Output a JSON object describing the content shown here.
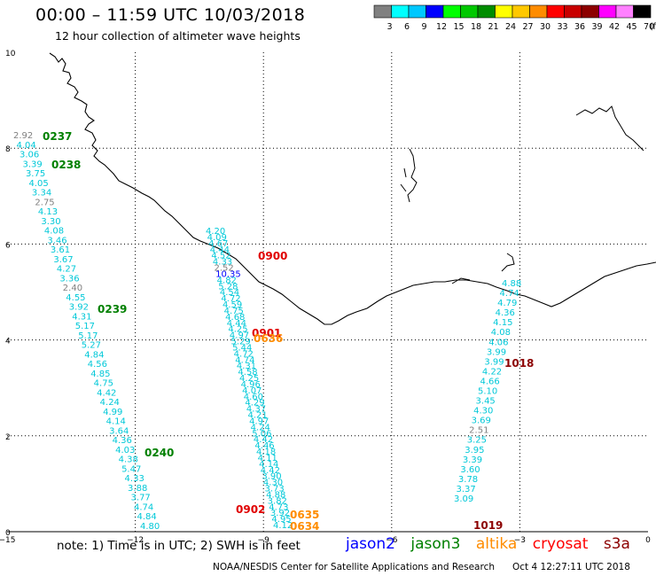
{
  "header": {
    "title": "00:00 – 11:59 UTC 10/03/2018",
    "subtitle": "12 hour collection of altimeter wave heights"
  },
  "colorbar": {
    "colors": [
      "#808080",
      "#00ffff",
      "#00c8ff",
      "#0000ff",
      "#00ff00",
      "#00c800",
      "#008c00",
      "#ffff00",
      "#ffc800",
      "#ff8c00",
      "#ff0000",
      "#c80000",
      "#8c0000",
      "#ff00ff",
      "#ff80ff",
      "#000000"
    ],
    "labels": [
      "3",
      "6",
      "9",
      "12",
      "15",
      "18",
      "21",
      "24",
      "27",
      "30",
      "33",
      "36",
      "39",
      "42",
      "45",
      "70",
      "(ft)"
    ]
  },
  "map": {
    "x_range": [
      -15,
      0
    ],
    "y_range": [
      0,
      10
    ],
    "x_ticks": [
      "−15",
      "−12",
      "−9",
      "−6",
      "−3",
      "0"
    ],
    "y_ticks": [
      "0",
      "2",
      "4",
      "6",
      "8",
      "10"
    ],
    "coastline_color": "#000000",
    "grid": "dotted"
  },
  "tracks": [
    {
      "id": "0237",
      "satellite": "jason3",
      "values": [
        "2.92",
        "4.04",
        "3.06",
        "3.39",
        "3.75",
        "4.05",
        "3.34",
        "2.75",
        "4.13",
        "3.30",
        "4.08",
        "3.46",
        "3.61",
        "3.67",
        "4.27",
        "3.36",
        "2.40",
        "4.55",
        "3.92",
        "4.31",
        "5.17",
        "5.17",
        "5.27",
        "4.84",
        "4.56",
        "4.85",
        "4.75",
        "4.42",
        "4.24",
        "4.99",
        "4.14",
        "3.64",
        "4.36",
        "4.03",
        "4.38",
        "5.47",
        "4.33",
        "3.88",
        "3.77",
        "4.74",
        "4.84",
        "4.80"
      ]
    },
    {
      "id": "0900",
      "satellite": "cryosat",
      "values": [
        "4.20",
        "4.09",
        "4.67",
        "4.44",
        "4.52",
        "4.33",
        "2.52",
        "10.35",
        "4.82",
        "5.28",
        "4.54",
        "4.72",
        "4.59",
        "4.75",
        "4.68",
        "4.44",
        "4.25",
        "4.97",
        "5.29",
        "5.44",
        "4.72",
        "4.74",
        "4.31",
        "4.58",
        "4.25",
        "4.96",
        "4.07",
        "4.60",
        "4.29",
        "4.37",
        "4.21",
        "4.97",
        "4.24",
        "5.06",
        "4.42",
        "4.46",
        "4.18",
        "4.11",
        "4.14",
        "4.42",
        "3.90",
        "4.30",
        "3.73",
        "4.88",
        "3.82",
        "4.73",
        "3.92",
        "4.95",
        "4.12"
      ]
    },
    {
      "id": "1018",
      "satellite": "s3a",
      "values": [
        "4.88",
        "4.74",
        "4.79",
        "4.36",
        "4.15",
        "4.08",
        "4.06",
        "3.99",
        "3.99",
        "4.22",
        "4.66",
        "5.10",
        "3.45",
        "4.30",
        "3.69",
        "2.51",
        "3.25",
        "3.95",
        "3.39",
        "3.60",
        "3.78",
        "3.37",
        "3.09"
      ]
    }
  ],
  "time_labels": [
    {
      "text": "0237",
      "satellite": "jason3",
      "color": "#008000"
    },
    {
      "text": "0238",
      "satellite": "jason3",
      "color": "#008000"
    },
    {
      "text": "0239",
      "satellite": "jason3",
      "color": "#008000"
    },
    {
      "text": "0240",
      "satellite": "jason3",
      "color": "#008000"
    },
    {
      "text": "0900",
      "satellite": "cryosat",
      "color": "#e00000"
    },
    {
      "text": "0901",
      "satellite": "cryosat",
      "color": "#e00000"
    },
    {
      "text": "0636",
      "satellite": "altika",
      "color": "#ff8c00"
    },
    {
      "text": "0902",
      "satellite": "cryosat",
      "color": "#e00000"
    },
    {
      "text": "0635",
      "satellite": "altika",
      "color": "#ff8c00"
    },
    {
      "text": "0634",
      "satellite": "altika",
      "color": "#ff8c00"
    },
    {
      "text": "1018",
      "satellite": "s3a",
      "color": "#8c0000"
    },
    {
      "text": "1019",
      "satellite": "s3a",
      "color": "#8c0000"
    }
  ],
  "legend": {
    "note": "note: 1) Time is in UTC; 2) SWH is in feet",
    "satellites": [
      {
        "name": "jason2",
        "color": "#0000ff"
      },
      {
        "name": "jason3",
        "color": "#008000"
      },
      {
        "name": "altika",
        "color": "#ff8c00"
      },
      {
        "name": "cryosat",
        "color": "#ff0000"
      },
      {
        "name": "s3a",
        "color": "#8c0000"
      }
    ]
  },
  "footer": {
    "credit": "NOAA/NESDIS Center for Satellite Applications and Research",
    "timestamp": "Oct  4 12:27:11 UTC 2018"
  }
}
